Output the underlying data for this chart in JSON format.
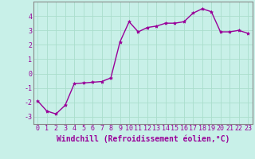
{
  "x": [
    0,
    1,
    2,
    3,
    4,
    5,
    6,
    7,
    8,
    9,
    10,
    11,
    12,
    13,
    14,
    15,
    16,
    17,
    18,
    19,
    20,
    21,
    22,
    23
  ],
  "y": [
    -1.9,
    -2.6,
    -2.8,
    -2.2,
    -0.7,
    -0.65,
    -0.6,
    -0.55,
    -0.3,
    2.2,
    3.6,
    2.9,
    3.2,
    3.3,
    3.5,
    3.5,
    3.6,
    4.2,
    4.5,
    4.3,
    2.9,
    2.9,
    3.0,
    2.8
  ],
  "line_color": "#990099",
  "marker": "*",
  "marker_size": 3,
  "background_color": "#c8f0e8",
  "grid_color": "#aaddcc",
  "xlabel": "Windchill (Refroidissement éolien,°C)",
  "ylabel": "",
  "ylim": [
    -3.5,
    5.0
  ],
  "xlim": [
    -0.5,
    23.5
  ],
  "yticks": [
    -3,
    -2,
    -1,
    0,
    1,
    2,
    3,
    4
  ],
  "xticks": [
    0,
    1,
    2,
    3,
    4,
    5,
    6,
    7,
    8,
    9,
    10,
    11,
    12,
    13,
    14,
    15,
    16,
    17,
    18,
    19,
    20,
    21,
    22,
    23
  ],
  "tick_label_fontsize": 6,
  "xlabel_fontsize": 7,
  "line_width": 1.0,
  "spine_color": "#888888",
  "tick_color": "#990099"
}
